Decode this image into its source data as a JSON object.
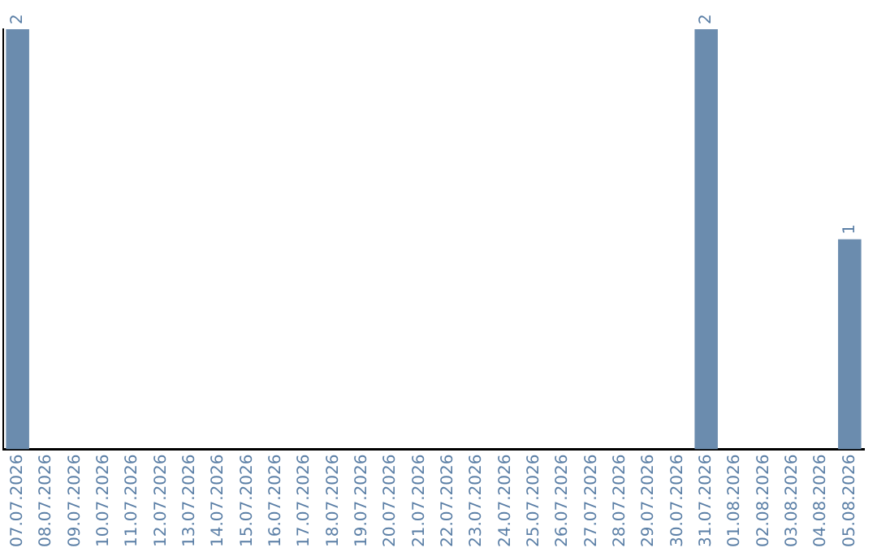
{
  "chart_data": {
    "type": "bar",
    "categories": [
      "07.07.2026",
      "08.07.2026",
      "09.07.2026",
      "10.07.2026",
      "11.07.2026",
      "12.07.2026",
      "13.07.2026",
      "14.07.2026",
      "15.07.2026",
      "16.07.2026",
      "17.07.2026",
      "18.07.2026",
      "19.07.2026",
      "20.07.2026",
      "21.07.2026",
      "22.07.2026",
      "23.07.2026",
      "24.07.2026",
      "25.07.2026",
      "26.07.2026",
      "27.07.2026",
      "28.07.2026",
      "29.07.2026",
      "30.07.2026",
      "31.07.2026",
      "01.08.2026",
      "02.08.2026",
      "03.08.2026",
      "04.08.2026",
      "05.08.2026"
    ],
    "values": [
      2,
      0,
      0,
      0,
      0,
      0,
      0,
      0,
      0,
      0,
      0,
      0,
      0,
      0,
      0,
      0,
      0,
      0,
      0,
      0,
      0,
      0,
      0,
      0,
      2,
      0,
      0,
      0,
      0,
      1
    ],
    "value_labels": [
      "2",
      null,
      null,
      null,
      null,
      null,
      null,
      null,
      null,
      null,
      null,
      null,
      null,
      null,
      null,
      null,
      null,
      null,
      null,
      null,
      null,
      null,
      null,
      null,
      "2",
      null,
      null,
      null,
      null,
      "1"
    ],
    "color": "#6b8cae",
    "tick_labels": "x",
    "grid": false,
    "legend": false
  }
}
